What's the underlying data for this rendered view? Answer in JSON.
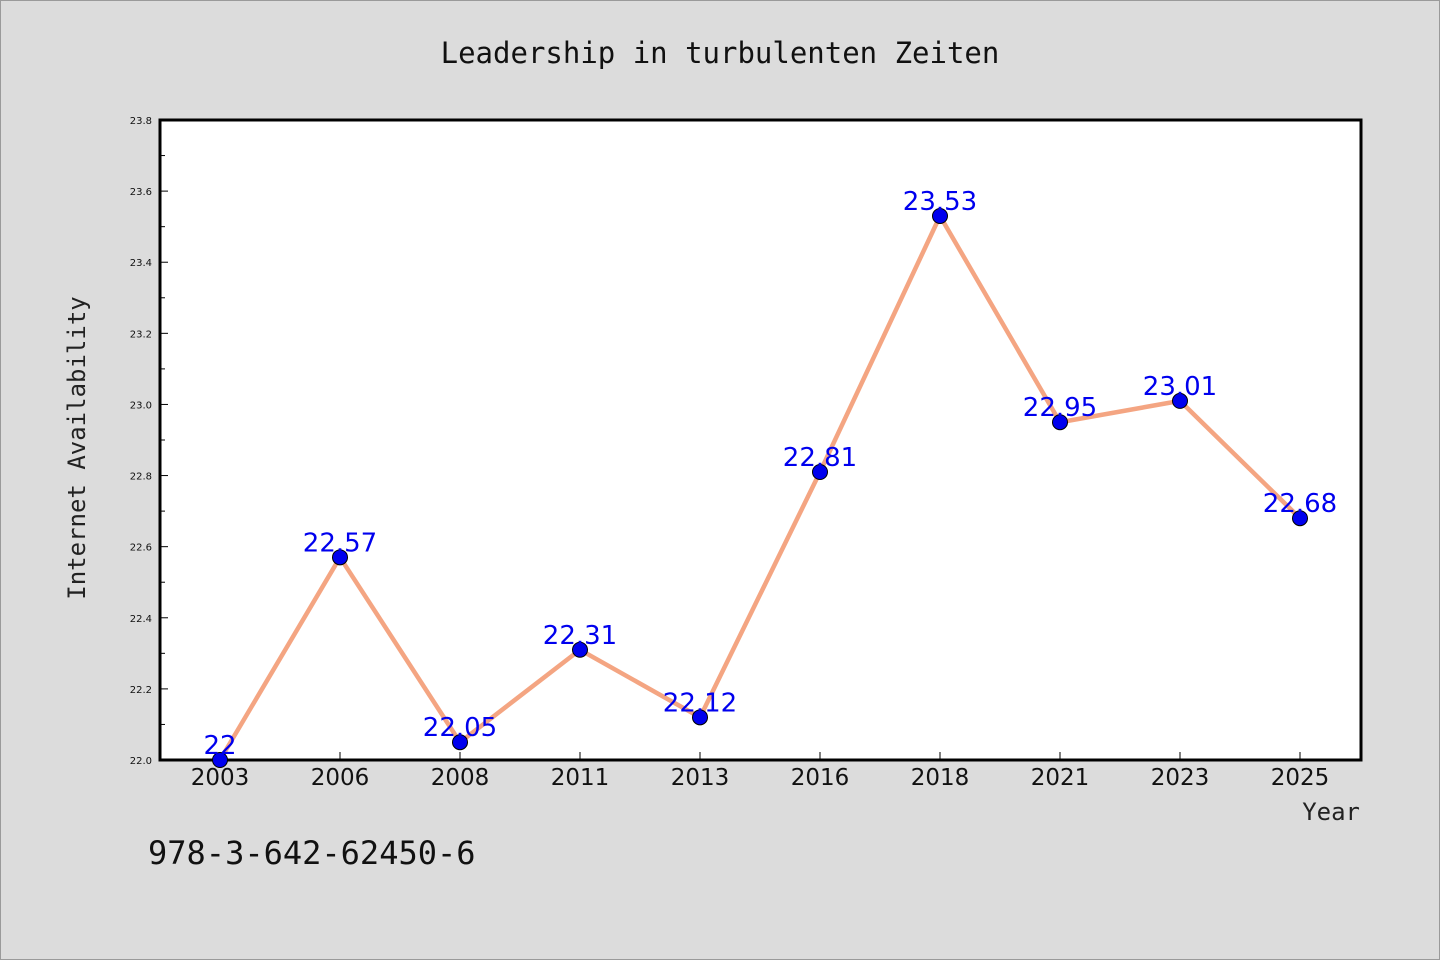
{
  "chart_data": {
    "type": "line",
    "title": "Leadership in turbulenten Zeiten",
    "xlabel": "Year",
    "ylabel": "Internet Availability",
    "x": [
      "2003",
      "2006",
      "2008",
      "2011",
      "2013",
      "2016",
      "2018",
      "2021",
      "2023",
      "2025"
    ],
    "values": [
      22.0,
      22.57,
      22.05,
      22.31,
      22.12,
      22.81,
      23.53,
      22.95,
      23.01,
      22.68
    ],
    "data_labels": [
      "22",
      "22.57",
      "22.05",
      "22.31",
      "22.12",
      "22.81",
      "23.53",
      "22.95",
      "23.01",
      "22.68"
    ],
    "ylim": [
      22.0,
      23.8
    ],
    "yticks": [
      "22.0",
      "22.2",
      "22.4",
      "22.6",
      "22.8",
      "23.0",
      "23.2",
      "23.4",
      "23.6",
      "23.8"
    ],
    "grid": false,
    "line_color": "#f4a582",
    "marker_color": "#0000ee",
    "label_color": "#0000ee"
  },
  "footer": {
    "isbn": "978-3-642-62450-6"
  }
}
